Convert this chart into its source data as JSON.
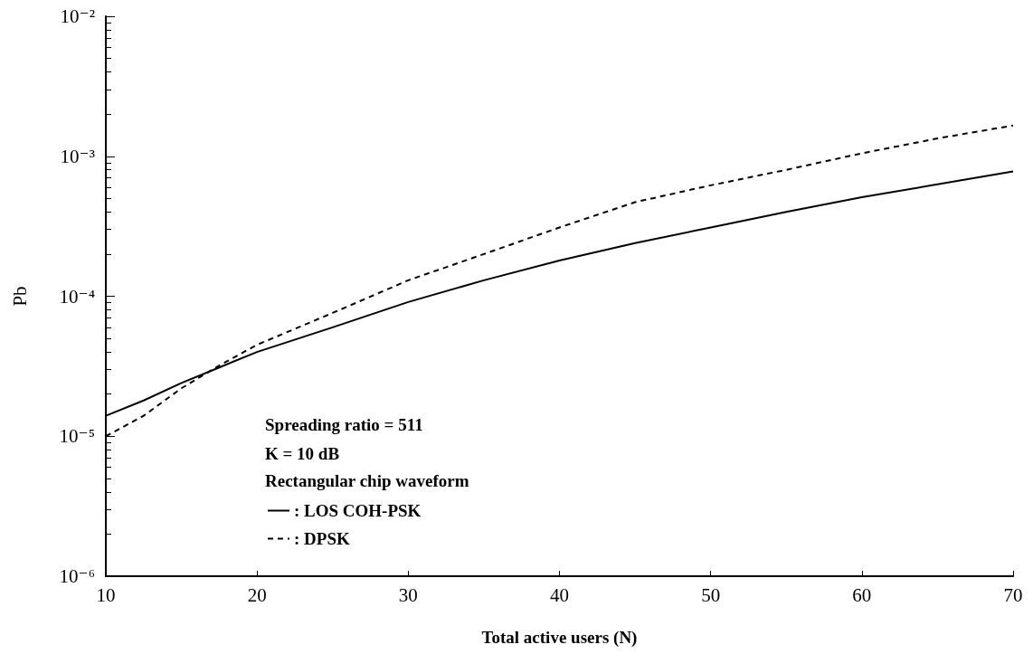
{
  "chart_data": {
    "type": "line",
    "xlabel": "Total active users (N)",
    "ylabel": "Pb",
    "x": [
      10,
      12.5,
      15,
      17.5,
      20,
      25,
      30,
      35,
      40,
      45,
      50,
      55,
      60,
      65,
      70
    ],
    "series": [
      {
        "name": ": LOS COH-PSK",
        "color": "#000000",
        "line_style": "solid",
        "values": [
          1.4e-05,
          1.8e-05,
          2.4e-05,
          3.1e-05,
          4e-05,
          6e-05,
          9.1e-05,
          0.00013,
          0.00018,
          0.00024,
          0.00031,
          0.0004,
          0.00051,
          0.00063,
          0.00078
        ]
      },
      {
        "name": ": DPSK",
        "color": "#000000",
        "line_style": "dashed",
        "values": [
          1e-05,
          1.4e-05,
          2.2e-05,
          3.2e-05,
          4.5e-05,
          7.6e-05,
          0.00013,
          0.0002,
          0.00031,
          0.00047,
          0.00062,
          0.0008,
          0.00105,
          0.00134,
          0.00166
        ]
      }
    ],
    "xlim": [
      10,
      70
    ],
    "xticks": [
      10,
      20,
      30,
      40,
      50,
      60,
      70
    ],
    "ylim": [
      1e-06,
      0.01
    ],
    "yticks": [
      {
        "value": 1e-06,
        "label": "10⁻⁶"
      },
      {
        "value": 1e-05,
        "label": "10⁻⁵"
      },
      {
        "value": 0.0001,
        "label": "10⁻⁴"
      },
      {
        "value": 0.001,
        "label": "10⁻³"
      },
      {
        "value": 0.01,
        "label": "10⁻²"
      }
    ],
    "log": "y",
    "grid": false,
    "marker": "none",
    "legend": "bottom left",
    "annotations": [
      "Spreading ratio = 511",
      "K = 10 dB",
      "Rectangular chip waveform"
    ]
  }
}
